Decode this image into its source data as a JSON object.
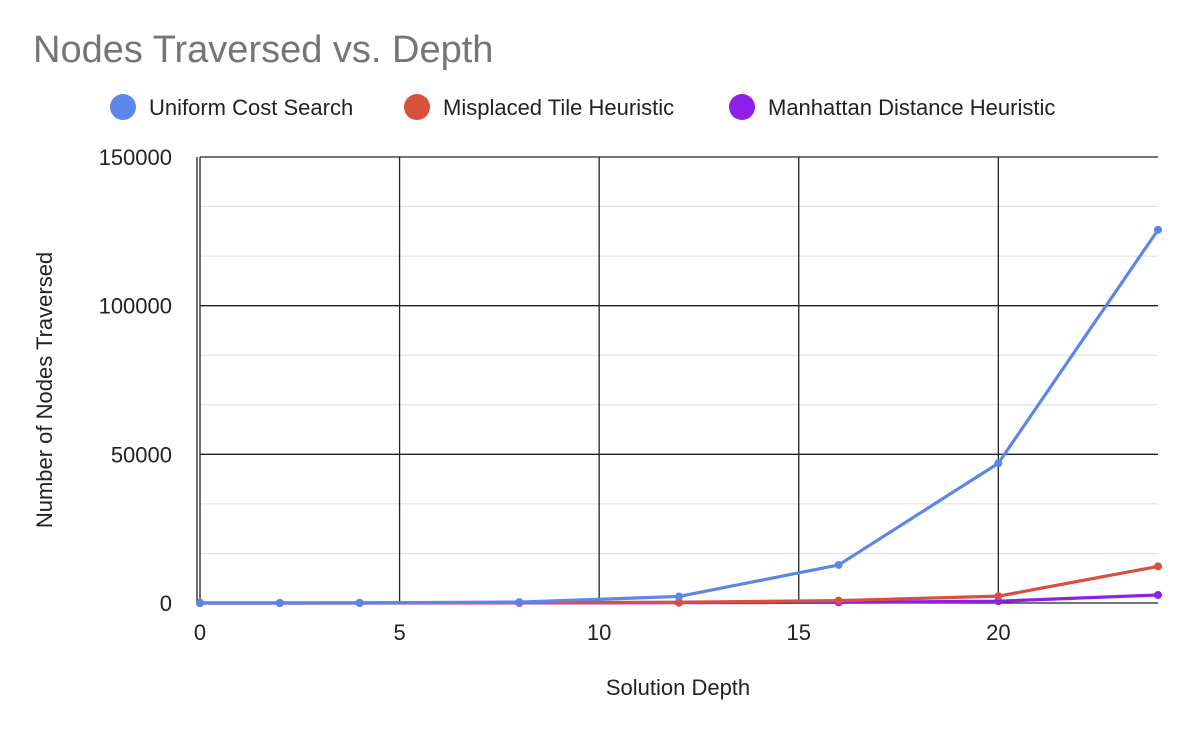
{
  "chart_data": {
    "type": "line",
    "title": "Nodes Traversed vs. Depth",
    "xlabel": "Solution Depth",
    "ylabel": "Number of Nodes Traversed",
    "xlim": [
      0,
      24
    ],
    "ylim": [
      0,
      150000
    ],
    "xticks": [
      0,
      5,
      10,
      15,
      20
    ],
    "yticks": [
      0,
      50000,
      100000,
      150000
    ],
    "xtick_labels": [
      "0",
      "5",
      "10",
      "15",
      "20"
    ],
    "ytick_labels": [
      "0",
      "50000",
      "100000",
      "150000"
    ],
    "grid": true,
    "legend_position": "top",
    "x": [
      0,
      2,
      4,
      8,
      12,
      16,
      20,
      24
    ],
    "series": [
      {
        "name": "Uniform Cost Search",
        "color": "#5b87e8",
        "values": [
          1,
          5,
          50,
          300,
          2200,
          12800,
          47000,
          125500
        ]
      },
      {
        "name": "Misplaced Tile Heuristic",
        "color": "#d9503f",
        "values": [
          1,
          3,
          10,
          60,
          250,
          800,
          2300,
          12300
        ]
      },
      {
        "name": "Manhattan Distance Heuristic",
        "color": "#8e1fe8",
        "values": [
          1,
          3,
          8,
          30,
          100,
          250,
          600,
          2700
        ]
      }
    ]
  }
}
